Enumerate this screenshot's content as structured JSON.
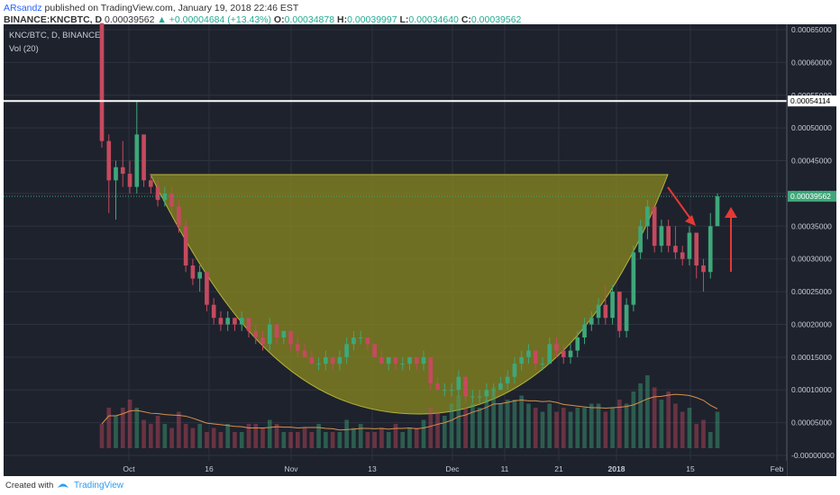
{
  "header": {
    "author": "ARsandz",
    "published_text": "published on TradingView.com, January 19, 2018 22:46 EST",
    "symbol": "BINANCE:KNCBTC, D",
    "last": "0.00039562",
    "change": "+0.00004684 (+13.43%)",
    "o_label": "O:",
    "o_value": "0.00034878",
    "h_label": "H:",
    "h_value": "0.00039997",
    "l_label": "L:",
    "l_value": "0.00034640",
    "c_label": "C:",
    "c_value": "0.00039562"
  },
  "legend": {
    "title": "KNC/BTC, D, BINANCE",
    "volume": "Vol (20)"
  },
  "footer": {
    "created_with": "Created with",
    "brand": "TradingView"
  },
  "colors": {
    "background": "#1e222d",
    "up_candle": "#3fa77a",
    "down_candle": "#c54a5e",
    "cup_fill": "#8a8a1f",
    "cup_stroke": "#b5b53a",
    "grid": "#2f3340",
    "resistance_line": "#ffffff",
    "annotation_arrow": "#e53935",
    "volume_ma": "#d9904a",
    "price_line": "#3fa77a"
  },
  "chart_data": {
    "type": "candlestick",
    "symbol": "KNC/BTC",
    "interval": "D",
    "exchange": "BINANCE",
    "x_tick_labels": [
      "Oct",
      "16",
      "Nov",
      "13",
      "Dec",
      "11",
      "21",
      "2018",
      "15",
      "Feb"
    ],
    "y_tick_labels": [
      "0.00065000",
      "0.00060000",
      "0.00055000",
      "0.00050000",
      "0.00045000",
      "0.00040000",
      "0.00035000",
      "0.00030000",
      "0.00025000",
      "0.00020000",
      "0.00015000",
      "0.00010000",
      "0.00005000",
      "-0.00000000"
    ],
    "ylim": [
      -0.0,
      0.00065
    ],
    "resistance_level": "0.00054114",
    "current_price_label": "0.00039562",
    "annotations": [
      "cup shape",
      "red arrow down",
      "red arrow up"
    ],
    "candles": [
      {
        "o": 0.00066,
        "h": 0.00066,
        "l": 0.00047,
        "c": 0.00048
      },
      {
        "o": 0.00048,
        "h": 0.00049,
        "l": 0.00037,
        "c": 0.00042
      },
      {
        "o": 0.00042,
        "h": 0.00045,
        "l": 0.00036,
        "c": 0.00044
      },
      {
        "o": 0.00044,
        "h": 0.00048,
        "l": 0.00041,
        "c": 0.00043
      },
      {
        "o": 0.00043,
        "h": 0.00045,
        "l": 0.0004,
        "c": 0.00041
      },
      {
        "o": 0.00041,
        "h": 0.00054,
        "l": 0.0004,
        "c": 0.00049
      },
      {
        "o": 0.00049,
        "h": 0.00049,
        "l": 0.00041,
        "c": 0.00042
      },
      {
        "o": 0.00042,
        "h": 0.00043,
        "l": 0.0004,
        "c": 0.00041
      },
      {
        "o": 0.00041,
        "h": 0.00042,
        "l": 0.00038,
        "c": 0.00039
      },
      {
        "o": 0.00039,
        "h": 0.00041,
        "l": 0.00038,
        "c": 0.0004
      },
      {
        "o": 0.0004,
        "h": 0.00041,
        "l": 0.00037,
        "c": 0.00038
      },
      {
        "o": 0.00038,
        "h": 0.00039,
        "l": 0.00034,
        "c": 0.00035
      },
      {
        "o": 0.00035,
        "h": 0.00036,
        "l": 0.00028,
        "c": 0.00029
      },
      {
        "o": 0.00029,
        "h": 0.0003,
        "l": 0.00026,
        "c": 0.00027
      },
      {
        "o": 0.00027,
        "h": 0.00029,
        "l": 0.00025,
        "c": 0.00028
      },
      {
        "o": 0.00028,
        "h": 0.00028,
        "l": 0.00022,
        "c": 0.00023
      },
      {
        "o": 0.00023,
        "h": 0.00024,
        "l": 0.0002,
        "c": 0.00021
      },
      {
        "o": 0.00021,
        "h": 0.00022,
        "l": 0.00019,
        "c": 0.0002
      },
      {
        "o": 0.0002,
        "h": 0.00022,
        "l": 0.00019,
        "c": 0.00021
      },
      {
        "o": 0.00021,
        "h": 0.00021,
        "l": 0.00019,
        "c": 0.0002
      },
      {
        "o": 0.0002,
        "h": 0.00022,
        "l": 0.00019,
        "c": 0.00021
      },
      {
        "o": 0.00021,
        "h": 0.00021,
        "l": 0.00018,
        "c": 0.00019
      },
      {
        "o": 0.00019,
        "h": 0.0002,
        "l": 0.00017,
        "c": 0.00018
      },
      {
        "o": 0.00018,
        "h": 0.00019,
        "l": 0.00016,
        "c": 0.00017
      },
      {
        "o": 0.00017,
        "h": 0.00021,
        "l": 0.00016,
        "c": 0.0002
      },
      {
        "o": 0.0002,
        "h": 0.0002,
        "l": 0.00017,
        "c": 0.00018
      },
      {
        "o": 0.00018,
        "h": 0.00019,
        "l": 0.00017,
        "c": 0.00019
      },
      {
        "o": 0.00019,
        "h": 0.00019,
        "l": 0.00016,
        "c": 0.00017
      },
      {
        "o": 0.00017,
        "h": 0.00018,
        "l": 0.00015,
        "c": 0.00016
      },
      {
        "o": 0.00016,
        "h": 0.00017,
        "l": 0.00015,
        "c": 0.00015
      },
      {
        "o": 0.00015,
        "h": 0.00016,
        "l": 0.00014,
        "c": 0.00014
      },
      {
        "o": 0.00014,
        "h": 0.00015,
        "l": 0.00013,
        "c": 0.00014
      },
      {
        "o": 0.00014,
        "h": 0.00016,
        "l": 0.00013,
        "c": 0.00015
      },
      {
        "o": 0.00015,
        "h": 0.00015,
        "l": 0.00013,
        "c": 0.00014
      },
      {
        "o": 0.00014,
        "h": 0.00016,
        "l": 0.00013,
        "c": 0.00015
      },
      {
        "o": 0.00015,
        "h": 0.00018,
        "l": 0.00014,
        "c": 0.00017
      },
      {
        "o": 0.00017,
        "h": 0.00019,
        "l": 0.00016,
        "c": 0.00018
      },
      {
        "o": 0.00018,
        "h": 0.00019,
        "l": 0.00017,
        "c": 0.00018
      },
      {
        "o": 0.00018,
        "h": 0.00018,
        "l": 0.00016,
        "c": 0.00017
      },
      {
        "o": 0.00017,
        "h": 0.00017,
        "l": 0.00015,
        "c": 0.00015
      },
      {
        "o": 0.00015,
        "h": 0.00016,
        "l": 0.00014,
        "c": 0.00014
      },
      {
        "o": 0.00014,
        "h": 0.00015,
        "l": 0.00013,
        "c": 0.00015
      },
      {
        "o": 0.00015,
        "h": 0.00015,
        "l": 0.00013,
        "c": 0.00014
      },
      {
        "o": 0.00014,
        "h": 0.00015,
        "l": 0.00013,
        "c": 0.00014
      },
      {
        "o": 0.00014,
        "h": 0.00015,
        "l": 0.00013,
        "c": 0.00015
      },
      {
        "o": 0.00015,
        "h": 0.00015,
        "l": 0.00013,
        "c": 0.00014
      },
      {
        "o": 0.00014,
        "h": 0.00016,
        "l": 0.00013,
        "c": 0.00015
      },
      {
        "o": 0.00015,
        "h": 0.00015,
        "l": 0.0001,
        "c": 0.00011
      },
      {
        "o": 0.00011,
        "h": 0.00012,
        "l": 0.0001,
        "c": 0.0001
      },
      {
        "o": 0.0001,
        "h": 0.00011,
        "l": 9e-05,
        "c": 0.0001
      },
      {
        "o": 0.0001,
        "h": 0.00011,
        "l": 9e-05,
        "c": 0.0001
      },
      {
        "o": 0.0001,
        "h": 0.00013,
        "l": 9e-05,
        "c": 0.00012
      },
      {
        "o": 0.00012,
        "h": 0.00012,
        "l": 8e-05,
        "c": 9e-05
      },
      {
        "o": 9e-05,
        "h": 0.0001,
        "l": 8e-05,
        "c": 9e-05
      },
      {
        "o": 9e-05,
        "h": 0.0001,
        "l": 8e-05,
        "c": 9e-05
      },
      {
        "o": 9e-05,
        "h": 0.00011,
        "l": 8e-05,
        "c": 0.0001
      },
      {
        "o": 0.0001,
        "h": 0.00011,
        "l": 9e-05,
        "c": 0.0001
      },
      {
        "o": 0.0001,
        "h": 0.00012,
        "l": 0.0001,
        "c": 0.00011
      },
      {
        "o": 0.00011,
        "h": 0.00013,
        "l": 0.0001,
        "c": 0.00012
      },
      {
        "o": 0.00012,
        "h": 0.00015,
        "l": 0.00011,
        "c": 0.00014
      },
      {
        "o": 0.00014,
        "h": 0.00016,
        "l": 0.00013,
        "c": 0.00015
      },
      {
        "o": 0.00015,
        "h": 0.00017,
        "l": 0.00014,
        "c": 0.00016
      },
      {
        "o": 0.00016,
        "h": 0.00016,
        "l": 0.00013,
        "c": 0.00014
      },
      {
        "o": 0.00014,
        "h": 0.00015,
        "l": 0.00013,
        "c": 0.00014
      },
      {
        "o": 0.00014,
        "h": 0.00018,
        "l": 0.00014,
        "c": 0.00017
      },
      {
        "o": 0.00017,
        "h": 0.00018,
        "l": 0.00015,
        "c": 0.00016
      },
      {
        "o": 0.00016,
        "h": 0.00017,
        "l": 0.00014,
        "c": 0.00015
      },
      {
        "o": 0.00015,
        "h": 0.00017,
        "l": 0.00014,
        "c": 0.00016
      },
      {
        "o": 0.00016,
        "h": 0.00019,
        "l": 0.00015,
        "c": 0.00018
      },
      {
        "o": 0.00018,
        "h": 0.00021,
        "l": 0.00017,
        "c": 0.0002
      },
      {
        "o": 0.0002,
        "h": 0.00022,
        "l": 0.00019,
        "c": 0.00021
      },
      {
        "o": 0.00021,
        "h": 0.00024,
        "l": 0.0002,
        "c": 0.00023
      },
      {
        "o": 0.00023,
        "h": 0.00026,
        "l": 0.0002,
        "c": 0.00021
      },
      {
        "o": 0.00021,
        "h": 0.00026,
        "l": 0.0002,
        "c": 0.00025
      },
      {
        "o": 0.00025,
        "h": 0.00025,
        "l": 0.00018,
        "c": 0.00019
      },
      {
        "o": 0.00019,
        "h": 0.00024,
        "l": 0.00018,
        "c": 0.00023
      },
      {
        "o": 0.00023,
        "h": 0.00032,
        "l": 0.00022,
        "c": 0.00031
      },
      {
        "o": 0.00031,
        "h": 0.00036,
        "l": 0.0003,
        "c": 0.00035
      },
      {
        "o": 0.00035,
        "h": 0.00039,
        "l": 0.00033,
        "c": 0.00038
      },
      {
        "o": 0.00038,
        "h": 0.00038,
        "l": 0.00031,
        "c": 0.00032
      },
      {
        "o": 0.00032,
        "h": 0.00036,
        "l": 0.00031,
        "c": 0.00035
      },
      {
        "o": 0.00035,
        "h": 0.00036,
        "l": 0.00031,
        "c": 0.00032
      },
      {
        "o": 0.00032,
        "h": 0.00035,
        "l": 0.0003,
        "c": 0.00031
      },
      {
        "o": 0.00031,
        "h": 0.00032,
        "l": 0.00029,
        "c": 0.0003
      },
      {
        "o": 0.0003,
        "h": 0.00035,
        "l": 0.00029,
        "c": 0.00034
      },
      {
        "o": 0.00034,
        "h": 0.00034,
        "l": 0.00027,
        "c": 0.00029
      },
      {
        "o": 0.00029,
        "h": 0.0003,
        "l": 0.00025,
        "c": 0.00028
      },
      {
        "o": 0.00028,
        "h": 0.00037,
        "l": 0.00027,
        "c": 0.00035
      },
      {
        "o": 0.00035,
        "h": 0.0004,
        "l": 0.00035,
        "c": 0.00039562
      }
    ],
    "volume": [
      0.3,
      0.5,
      0.4,
      0.5,
      0.6,
      0.5,
      0.35,
      0.3,
      0.4,
      0.3,
      0.25,
      0.45,
      0.3,
      0.25,
      0.3,
      0.2,
      0.25,
      0.2,
      0.3,
      0.2,
      0.2,
      0.3,
      0.3,
      0.25,
      0.35,
      0.3,
      0.2,
      0.2,
      0.2,
      0.25,
      0.2,
      0.3,
      0.2,
      0.2,
      0.2,
      0.35,
      0.25,
      0.3,
      0.2,
      0.2,
      0.25,
      0.2,
      0.3,
      0.2,
      0.25,
      0.25,
      0.35,
      0.5,
      0.45,
      0.4,
      0.55,
      0.65,
      0.5,
      0.55,
      0.5,
      0.6,
      0.75,
      0.55,
      0.6,
      0.6,
      0.65,
      0.55,
      0.5,
      0.45,
      0.55,
      0.45,
      0.5,
      0.45,
      0.5,
      0.5,
      0.55,
      0.55,
      0.45,
      0.5,
      0.6,
      0.55,
      0.7,
      0.8,
      0.9,
      0.75,
      0.6,
      0.7,
      0.55,
      0.45,
      0.5,
      0.3,
      0.35,
      0.2,
      0.45,
      0.15
    ]
  }
}
